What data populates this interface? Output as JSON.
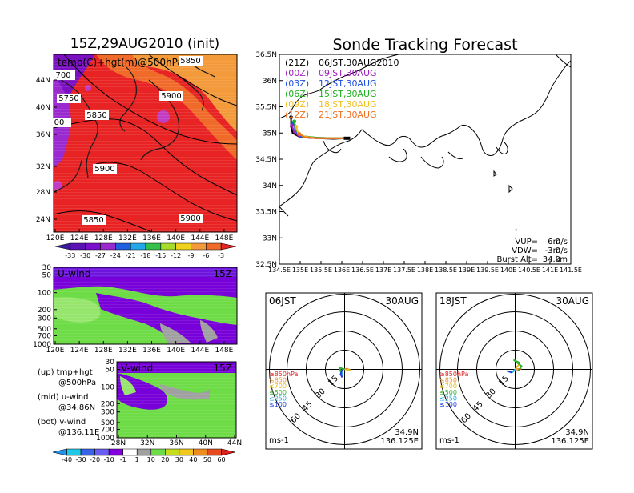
{
  "colors": {
    "orange_warm": "#f39a3a",
    "orange_mid": "#f06b2a",
    "red_hot": "#e82323",
    "purple_cold": "#8a1ec8",
    "magenta": "#c23cc2",
    "wind_purple": "#8200dc",
    "wind_blue": "#6a5cf0",
    "wind_green": "#6edc46",
    "wind_lightgreen": "#96e66e",
    "wind_gray": "#a0a0a0",
    "land": "#1a1a1a"
  },
  "left_panel": {
    "title": "15Z,29AUG2010 (init)",
    "top_map": {
      "label": "temp(C)+hgt(m)@500hPa",
      "y_ticks": [
        "44N",
        "40N",
        "36N",
        "32N",
        "28N",
        "24N"
      ],
      "x_ticks": [
        "120E",
        "124E",
        "128E",
        "132E",
        "136E",
        "140E",
        "144E",
        "148E"
      ],
      "contour_labels": [
        "700",
        "5750",
        "5850",
        "5900",
        "5850",
        "5900",
        "5850",
        "5900",
        "00"
      ],
      "colorbar_labels": [
        "-33",
        "-30",
        "-27",
        "-24",
        "-21",
        "-18",
        "-15",
        "-12",
        "-9",
        "-6",
        "-3"
      ]
    },
    "u_panel": {
      "label": "U-wind",
      "time": "15Z",
      "y_ticks": [
        "30",
        "50",
        "100",
        "200",
        "300",
        "500",
        "700",
        "1000"
      ],
      "x_ticks": [
        "120E",
        "124E",
        "128E",
        "132E",
        "136E",
        "140E",
        "144E",
        "148E"
      ]
    },
    "v_panel": {
      "label": "V-wind",
      "time": "15Z",
      "y_ticks": [
        "30",
        "50",
        "100",
        "200",
        "300",
        "500",
        "700",
        "1000"
      ],
      "x_ticks": [
        "28N",
        "32N",
        "36N",
        "40N",
        "44N"
      ]
    },
    "notes": [
      {
        "line1": "(up)  tmp+hgt",
        "line2": "@500hPa"
      },
      {
        "line1": "(mid)  u-wind",
        "line2": "@34.86N"
      },
      {
        "line1": "(bot)  v-wind",
        "line2": "@136.11E"
      }
    ],
    "wind_colorbar_labels": [
      "-40",
      "-30",
      "-20",
      "-10",
      "-1",
      "1",
      "10",
      "20",
      "30",
      "40",
      "50",
      "60"
    ]
  },
  "right_panel": {
    "title": "Sonde Tracking Forecast",
    "map": {
      "y_ticks": [
        "36.5N",
        "36N",
        "35.5N",
        "35N",
        "34.5N",
        "34N",
        "33.5N",
        "33N",
        "32.5N"
      ],
      "x_ticks": [
        "134.5E",
        "135E",
        "135.5E",
        "136E",
        "136.5E",
        "137E",
        "137.5E",
        "138E",
        "138.5E",
        "139E",
        "139.5E",
        "140E",
        "140.5E",
        "141E",
        "141.5E"
      ],
      "legend": [
        {
          "code": "(21Z)",
          "time": "06JST,30AUG2010",
          "color": "#000000"
        },
        {
          "code": "(00Z)",
          "time": "09JST,30AUG",
          "color": "#a020c0"
        },
        {
          "code": "(03Z)",
          "time": "12JST,30AUG",
          "color": "#2050e0"
        },
        {
          "code": "(06Z)",
          "time": "15JST,30AUG",
          "color": "#20b020"
        },
        {
          "code": "(09Z)",
          "time": "18JST,30AUG",
          "color": "#f0c020"
        },
        {
          "code": "(12Z)",
          "time": "21JST,30AUG",
          "color": "#f07020"
        }
      ],
      "params": [
        {
          "key": "VUP=",
          "value": "6.0",
          "unit": "m/s"
        },
        {
          "key": "VDW=",
          "value": "-3.0",
          "unit": "m/s"
        },
        {
          "key": "Burst Alt=",
          "value": "34.0",
          "unit": "km"
        }
      ]
    },
    "hodographs": [
      {
        "time_label": "06JST",
        "date": "30AUG",
        "ring_labels": [
          "15",
          "30",
          "45",
          "60"
        ],
        "unit": "ms-1",
        "lat": "34.9N",
        "lon": "136.125E",
        "levels": [
          {
            "label": "≥850hPa",
            "color": "#e02020"
          },
          {
            "label": "≤850",
            "color": "#f09030"
          },
          {
            "label": "≤700",
            "color": "#e0c020"
          },
          {
            "label": "≤500",
            "color": "#30b030"
          },
          {
            "label": "≤250",
            "color": "#20b0e0"
          },
          {
            "label": "≤100",
            "color": "#2040e0"
          }
        ]
      },
      {
        "time_label": "18JST",
        "date": "30AUG",
        "ring_labels": [
          "15",
          "30",
          "45",
          "60"
        ],
        "unit": "ms-1",
        "lat": "34.9N",
        "lon": "136.125E",
        "levels": [
          {
            "label": "≥850hPa",
            "color": "#e02020"
          },
          {
            "label": "≤850",
            "color": "#f09030"
          },
          {
            "label": "≤700",
            "color": "#e0c020"
          },
          {
            "label": "≤500",
            "color": "#30b030"
          },
          {
            "label": "≤250",
            "color": "#20b0e0"
          },
          {
            "label": "≤100",
            "color": "#2040e0"
          }
        ]
      }
    ]
  },
  "chart_data": [
    {
      "type": "heatmap",
      "title": "15Z,29AUG2010 (init)",
      "label": "temp(C)+hgt(m)@500hPa",
      "xlim": [
        120,
        150
      ],
      "ylim": [
        22,
        47
      ],
      "colorbar": [
        -33,
        -30,
        -27,
        -24,
        -21,
        -18,
        -15,
        -12,
        -9,
        -6,
        -3
      ],
      "contours": [
        5700,
        5750,
        5850,
        5900
      ]
    },
    {
      "type": "heatmap",
      "label": "U-wind",
      "time": "15Z",
      "xlim": [
        120,
        150
      ],
      "ylim_hpa": [
        1000,
        30
      ]
    },
    {
      "type": "heatmap",
      "label": "V-wind",
      "time": "15Z",
      "xlim": [
        28,
        44
      ],
      "ylim_hpa": [
        1000,
        30
      ]
    },
    {
      "type": "line",
      "title": "Sonde Tracking Forecast",
      "xlim": [
        134.5,
        141.5
      ],
      "ylim": [
        32.5,
        36.5
      ],
      "launch": {
        "lon": 136.125,
        "lat": 34.9
      },
      "series": [
        {
          "name": "(21Z) 06JST,30AUG2010",
          "color": "#000000",
          "points": [
            [
              136.125,
              34.9
            ],
            [
              135.8,
              34.89
            ],
            [
              135.4,
              34.9
            ],
            [
              135.0,
              34.92
            ],
            [
              134.82,
              35.0
            ],
            [
              134.78,
              35.12
            ],
            [
              134.78,
              35.3
            ]
          ]
        },
        {
          "name": "(00Z) 09JST,30AUG",
          "color": "#a020c0",
          "points": [
            [
              136.125,
              34.9
            ],
            [
              135.8,
              34.9
            ],
            [
              135.4,
              34.9
            ],
            [
              135.0,
              34.92
            ],
            [
              134.85,
              35.02
            ],
            [
              134.8,
              35.15
            ]
          ]
        },
        {
          "name": "(03Z) 12JST,30AUG",
          "color": "#2050e0",
          "points": [
            [
              136.125,
              34.9
            ],
            [
              135.8,
              34.9
            ],
            [
              135.4,
              34.91
            ],
            [
              135.0,
              34.93
            ],
            [
              134.88,
              35.05
            ],
            [
              134.84,
              35.2
            ]
          ]
        },
        {
          "name": "(06Z) 15JST,30AUG",
          "color": "#20b020",
          "points": [
            [
              136.125,
              34.9
            ],
            [
              135.8,
              34.9
            ],
            [
              135.4,
              34.91
            ],
            [
              135.05,
              34.94
            ],
            [
              134.9,
              35.05
            ],
            [
              134.86,
              35.22
            ]
          ]
        },
        {
          "name": "(09Z) 18JST,30AUG",
          "color": "#f0c020",
          "points": [
            [
              136.125,
              34.9
            ],
            [
              135.8,
              34.9
            ],
            [
              135.4,
              34.9
            ],
            [
              135.1,
              34.93
            ],
            [
              134.95,
              35.0
            ],
            [
              134.9,
              35.12
            ]
          ]
        },
        {
          "name": "(12Z) 21JST,30AUG",
          "color": "#f07020",
          "points": [
            [
              136.125,
              34.9
            ],
            [
              135.8,
              34.9
            ],
            [
              135.4,
              34.9
            ],
            [
              135.1,
              34.92
            ],
            [
              134.98,
              34.98
            ]
          ]
        }
      ]
    },
    {
      "type": "scatter",
      "title": "06JST 30AUG hodograph",
      "rings_ms": [
        15,
        30,
        45,
        60
      ]
    },
    {
      "type": "scatter",
      "title": "18JST 30AUG hodograph",
      "rings_ms": [
        15,
        30,
        45,
        60
      ]
    }
  ]
}
